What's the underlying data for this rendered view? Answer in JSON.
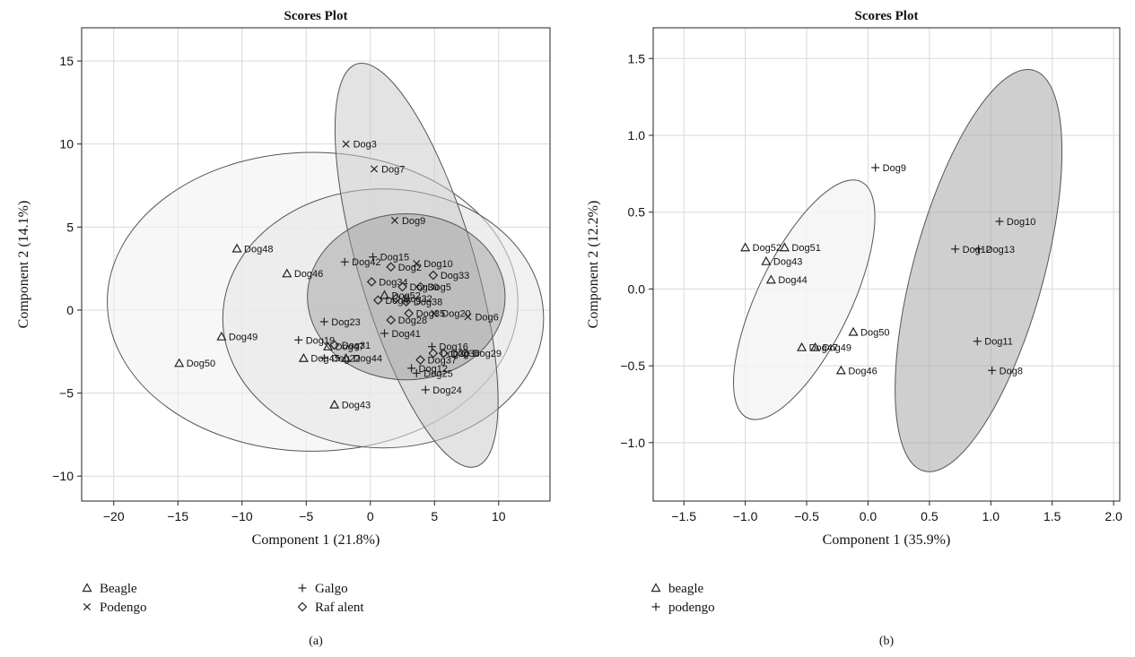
{
  "chart_data": [
    {
      "type": "scatter",
      "title": "Scores Plot",
      "xlabel": "Component 1 (21.8%)",
      "ylabel": "Component 2 (14.1%)",
      "xlim": [
        -22.5,
        14
      ],
      "ylim": [
        -11.5,
        17
      ],
      "xticks": [
        -20,
        -15,
        -10,
        -5,
        0,
        5,
        10
      ],
      "yticks": [
        -10,
        -5,
        0,
        5,
        10,
        15
      ],
      "xtick_labels": [
        "−20",
        "−15",
        "−10",
        "−5",
        "0",
        "5",
        "10"
      ],
      "ytick_labels": [
        "−10",
        "−5",
        "0",
        "5",
        "10",
        "15"
      ],
      "grid": true,
      "caption": "(a)",
      "legend": [
        {
          "label": "Beagle",
          "marker": "triangle"
        },
        {
          "label": "Podengo",
          "marker": "x"
        },
        {
          "label": "Galgo",
          "marker": "plus"
        },
        {
          "label": "Raf alent",
          "marker": "diamond"
        }
      ],
      "ellipses": [
        {
          "group": "Beagle",
          "cx": -4.5,
          "cy": 0.5,
          "rx": 16.0,
          "ry": 9.0,
          "angle": 0,
          "fill": "#f2f2f2",
          "opacity": 0.6
        },
        {
          "group": "Galgo",
          "cx": 1.0,
          "cy": -0.5,
          "rx": 12.5,
          "ry": 7.8,
          "angle": 0,
          "fill": "#e6e6e6",
          "opacity": 0.55
        },
        {
          "group": "Podengo",
          "cx": 3.6,
          "cy": 2.7,
          "rx": 13.0,
          "ry": 4.4,
          "angle": 112,
          "fill": "#c8c8c8",
          "opacity": 0.5
        },
        {
          "group": "Raf alent",
          "cx": 2.8,
          "cy": 0.8,
          "rx": 7.7,
          "ry": 5.0,
          "angle": 0,
          "fill": "#9a9a9a",
          "opacity": 0.45
        }
      ],
      "points": [
        {
          "label": "Dog3",
          "x": -1.9,
          "y": 10.0,
          "group": "Podengo"
        },
        {
          "label": "Dog7",
          "x": 0.3,
          "y": 8.5,
          "group": "Podengo"
        },
        {
          "label": "Dog9",
          "x": 1.9,
          "y": 5.4,
          "group": "Podengo"
        },
        {
          "label": "Dog10",
          "x": 3.6,
          "y": 2.8,
          "group": "Podengo"
        },
        {
          "label": "Dog6",
          "x": 7.6,
          "y": -0.4,
          "group": "Podengo"
        },
        {
          "label": "Dog20",
          "x": 5.0,
          "y": -0.2,
          "group": "Podengo"
        },
        {
          "label": "Dog48",
          "x": -10.4,
          "y": 3.7,
          "group": "Beagle"
        },
        {
          "label": "Dog46",
          "x": -6.5,
          "y": 2.2,
          "group": "Beagle"
        },
        {
          "label": "Dog49",
          "x": -11.6,
          "y": -1.6,
          "group": "Beagle"
        },
        {
          "label": "Dog50",
          "x": -14.9,
          "y": -3.2,
          "group": "Beagle"
        },
        {
          "label": "Dog47",
          "x": -3.3,
          "y": -2.2,
          "group": "Beagle"
        },
        {
          "label": "Dog45",
          "x": -5.2,
          "y": -2.9,
          "group": "Beagle"
        },
        {
          "label": "Dog44",
          "x": -1.9,
          "y": -2.9,
          "group": "Beagle"
        },
        {
          "label": "Dog43",
          "x": -2.8,
          "y": -5.7,
          "group": "Beagle"
        },
        {
          "label": "Dog52",
          "x": 1.1,
          "y": 0.9,
          "group": "Beagle"
        },
        {
          "label": "Dog15",
          "x": 0.2,
          "y": 3.2,
          "group": "Galgo"
        },
        {
          "label": "Dog42",
          "x": -2.0,
          "y": 2.9,
          "group": "Galgo"
        },
        {
          "label": "Dog23",
          "x": -3.6,
          "y": -0.7,
          "group": "Galgo"
        },
        {
          "label": "Dog19",
          "x": -5.6,
          "y": -1.8,
          "group": "Galgo"
        },
        {
          "label": "Dog22",
          "x": -3.6,
          "y": -2.9,
          "group": "Galgo"
        },
        {
          "label": "Dog41",
          "x": 1.1,
          "y": -1.4,
          "group": "Galgo"
        },
        {
          "label": "Dog16",
          "x": 4.8,
          "y": -2.2,
          "group": "Galgo"
        },
        {
          "label": "Dog12",
          "x": 3.2,
          "y": -3.5,
          "group": "Galgo"
        },
        {
          "label": "Dog25",
          "x": 3.6,
          "y": -3.8,
          "group": "Galgo"
        },
        {
          "label": "Dog24",
          "x": 4.3,
          "y": -4.8,
          "group": "Galgo"
        },
        {
          "label": "Dog2",
          "x": 1.6,
          "y": 2.6,
          "group": "Raf alent"
        },
        {
          "label": "Dog33",
          "x": 4.9,
          "y": 2.1,
          "group": "Raf alent"
        },
        {
          "label": "Dog34",
          "x": 0.1,
          "y": 1.7,
          "group": "Raf alent"
        },
        {
          "label": "Dog30",
          "x": 2.5,
          "y": 1.4,
          "group": "Raf alent"
        },
        {
          "label": "Dog5",
          "x": 3.9,
          "y": 1.4,
          "group": "Raf alent"
        },
        {
          "label": "Dog32",
          "x": 2.0,
          "y": 0.7,
          "group": "Raf alent"
        },
        {
          "label": "Dog38",
          "x": 2.8,
          "y": 0.5,
          "group": "Raf alent"
        },
        {
          "label": "Dog4",
          "x": 0.6,
          "y": 0.6,
          "group": "Raf alent"
        },
        {
          "label": "Dog35",
          "x": 3.0,
          "y": -0.2,
          "group": "Raf alent"
        },
        {
          "label": "Dog28",
          "x": 1.6,
          "y": -0.6,
          "group": "Raf alent"
        },
        {
          "label": "Dog31",
          "x": -2.8,
          "y": -2.1,
          "group": "Raf alent"
        },
        {
          "label": "Dog26",
          "x": 4.9,
          "y": -2.6,
          "group": "Raf alent"
        },
        {
          "label": "Dog36",
          "x": 5.7,
          "y": -2.6,
          "group": "Raf alent"
        },
        {
          "label": "Dog29",
          "x": 7.4,
          "y": -2.6,
          "group": "Raf alent"
        },
        {
          "label": "Dog37",
          "x": 3.9,
          "y": -3.0,
          "group": "Raf alent"
        }
      ]
    },
    {
      "type": "scatter",
      "title": "Scores Plot",
      "xlabel": "Component 1 (35.9%)",
      "ylabel": "Component 2 (12.2%)",
      "xlim": [
        -1.75,
        2.05
      ],
      "ylim": [
        -1.38,
        1.7
      ],
      "xticks": [
        -1.5,
        -1.0,
        -0.5,
        0.0,
        0.5,
        1.0,
        1.5,
        2.0
      ],
      "yticks": [
        -1.0,
        -0.5,
        0.0,
        0.5,
        1.0,
        1.5
      ],
      "xtick_labels": [
        "−1.5",
        "−1.0",
        "−0.5",
        "0.0",
        "0.5",
        "1.0",
        "1.5",
        "2.0"
      ],
      "ytick_labels": [
        "−1.0",
        "−0.5",
        "0.0",
        "0.5",
        "1.0",
        "1.5"
      ],
      "grid": true,
      "caption": "(b)",
      "legend": [
        {
          "label": "beagle",
          "marker": "triangle"
        },
        {
          "label": "podengo",
          "marker": "plus"
        }
      ],
      "ellipses": [
        {
          "group": "beagle",
          "cx": -0.52,
          "cy": -0.07,
          "rx": 0.9,
          "ry": 0.36,
          "angle": 57,
          "fill": "#f4f4f4",
          "opacity": 0.85
        },
        {
          "group": "podengo",
          "cx": 0.9,
          "cy": 0.12,
          "rx": 1.38,
          "ry": 0.52,
          "angle": 70,
          "fill": "#a8a8a8",
          "opacity": 0.55
        }
      ],
      "points": [
        {
          "label": "Dog9",
          "x": 0.06,
          "y": 0.79,
          "group": "podengo"
        },
        {
          "label": "Dog10",
          "x": 1.07,
          "y": 0.44,
          "group": "podengo"
        },
        {
          "label": "Dog12",
          "x": 0.71,
          "y": 0.26,
          "group": "podengo"
        },
        {
          "label": "Dog13",
          "x": 0.9,
          "y": 0.26,
          "group": "podengo"
        },
        {
          "label": "Dog11",
          "x": 0.89,
          "y": -0.34,
          "group": "podengo"
        },
        {
          "label": "Dog8",
          "x": 1.01,
          "y": -0.53,
          "group": "podengo"
        },
        {
          "label": "Dog52",
          "x": -1.0,
          "y": 0.27,
          "group": "beagle"
        },
        {
          "label": "Dog51",
          "x": -0.68,
          "y": 0.27,
          "group": "beagle"
        },
        {
          "label": "Dog43",
          "x": -0.83,
          "y": 0.18,
          "group": "beagle"
        },
        {
          "label": "Dog44",
          "x": -0.79,
          "y": 0.06,
          "group": "beagle"
        },
        {
          "label": "Dog50",
          "x": -0.12,
          "y": -0.28,
          "group": "beagle"
        },
        {
          "label": "Dog47",
          "x": -0.54,
          "y": -0.38,
          "group": "beagle"
        },
        {
          "label": "Dog49",
          "x": -0.43,
          "y": -0.38,
          "group": "beagle"
        },
        {
          "label": "Dog46",
          "x": -0.22,
          "y": -0.53,
          "group": "beagle"
        }
      ]
    }
  ]
}
